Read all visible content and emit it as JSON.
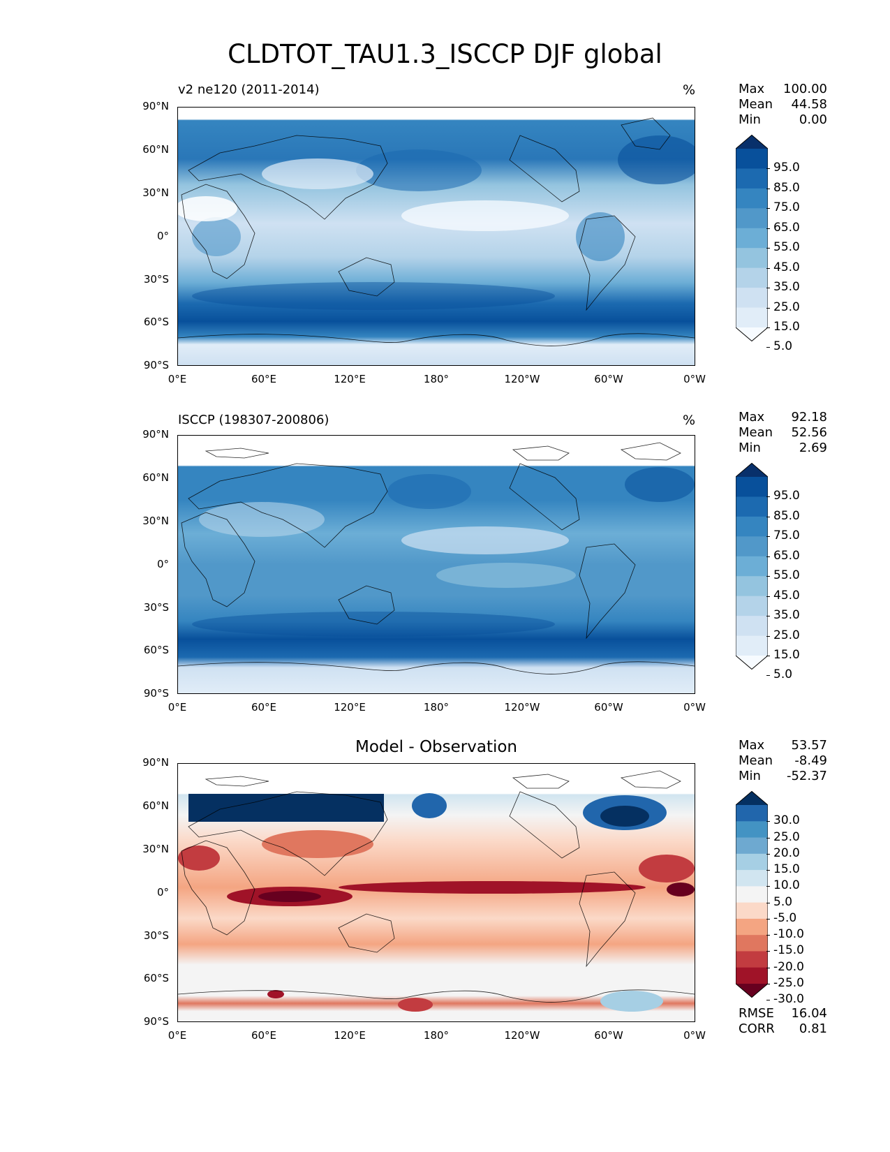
{
  "figure": {
    "title": "CLDTOT_TAU1.3_ISCCP DJF global"
  },
  "axes": {
    "y_ticks": [
      "90°N",
      "60°N",
      "30°N",
      "0°",
      "30°S",
      "60°S",
      "90°S"
    ],
    "x_ticks": [
      "0°E",
      "60°E",
      "120°E",
      "180°",
      "120°W",
      "60°W",
      "0°W"
    ]
  },
  "panels": [
    {
      "title_left": "v2 ne120 (2011-2014)",
      "title_center": "",
      "unit": "%",
      "stats": [
        {
          "label": "Max",
          "value": "100.00"
        },
        {
          "label": "Mean",
          "value": "44.58"
        },
        {
          "label": "Min",
          "value": "0.00"
        }
      ],
      "colorbar": {
        "labels": [
          "95.0",
          "85.0",
          "75.0",
          "65.0",
          "55.0",
          "45.0",
          "35.0",
          "25.0",
          "15.0",
          "5.0"
        ],
        "colors": [
          "#08306b",
          "#08509b",
          "#1c6ab0",
          "#3585c0",
          "#5198c9",
          "#6caed6",
          "#94c4df",
          "#b4d3e9",
          "#cfe1f2",
          "#e1edf8",
          "#f7fbff"
        ]
      }
    },
    {
      "title_left": "ISCCP (198307-200806)",
      "title_center": "",
      "unit": "%",
      "stats": [
        {
          "label": "Max",
          "value": "92.18"
        },
        {
          "label": "Mean",
          "value": "52.56"
        },
        {
          "label": "Min",
          "value": "2.69"
        }
      ],
      "colorbar": {
        "labels": [
          "95.0",
          "85.0",
          "75.0",
          "65.0",
          "55.0",
          "45.0",
          "35.0",
          "25.0",
          "15.0",
          "5.0"
        ],
        "colors": [
          "#08306b",
          "#08509b",
          "#1c6ab0",
          "#3585c0",
          "#5198c9",
          "#6caed6",
          "#94c4df",
          "#b4d3e9",
          "#cfe1f2",
          "#e1edf8",
          "#f7fbff"
        ]
      }
    },
    {
      "title_left": "",
      "title_center": "Model - Observation",
      "unit": "",
      "stats": [
        {
          "label": "Max",
          "value": "53.57"
        },
        {
          "label": "Mean",
          "value": "-8.49"
        },
        {
          "label": "Min",
          "value": "-52.37"
        }
      ],
      "metrics": [
        {
          "label": "RMSE",
          "value": "16.04"
        },
        {
          "label": "CORR",
          "value": "0.81"
        }
      ],
      "colorbar": {
        "labels": [
          "30.0",
          "25.0",
          "20.0",
          "15.0",
          "10.0",
          "5.0",
          "-5.0",
          "-10.0",
          "-15.0",
          "-20.0",
          "-25.0",
          "-30.0"
        ],
        "colors": [
          "#053061",
          "#2166ac",
          "#4393c3",
          "#6ea9d0",
          "#a6cfe4",
          "#d1e5f0",
          "#f4f4f4",
          "#fbd9c8",
          "#f4a582",
          "#e0775f",
          "#c23c40",
          "#a01328",
          "#67001f"
        ]
      }
    }
  ],
  "chart_data": [
    {
      "type": "heatmap",
      "title": "v2 ne120 (2011-2014)",
      "unit": "%",
      "variable": "CLDTOT_TAU1.3_ISCCP",
      "season": "DJF",
      "xlim": [
        0,
        360
      ],
      "ylim": [
        -90,
        90
      ],
      "levels": [
        5,
        15,
        25,
        35,
        45,
        55,
        65,
        75,
        85,
        95
      ],
      "max": 100.0,
      "mean": 44.58,
      "min": 0.0
    },
    {
      "type": "heatmap",
      "title": "ISCCP (198307-200806)",
      "unit": "%",
      "variable": "CLDTOT_TAU1.3_ISCCP",
      "season": "DJF",
      "xlim": [
        0,
        360
      ],
      "ylim": [
        -90,
        90
      ],
      "levels": [
        5,
        15,
        25,
        35,
        45,
        55,
        65,
        75,
        85,
        95
      ],
      "max": 92.18,
      "mean": 52.56,
      "min": 2.69
    },
    {
      "type": "heatmap",
      "title": "Model - Observation",
      "xlim": [
        0,
        360
      ],
      "ylim": [
        -90,
        90
      ],
      "levels": [
        -30,
        -25,
        -20,
        -15,
        -10,
        -5,
        5,
        10,
        15,
        20,
        25,
        30
      ],
      "max": 53.57,
      "mean": -8.49,
      "min": -52.37,
      "rmse": 16.04,
      "corr": 0.81
    }
  ]
}
